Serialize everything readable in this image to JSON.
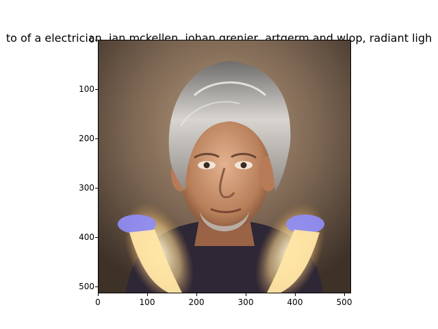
{
  "figure": {
    "title": "to of a electrician, ian mckellen, johan grenier, artgerm and wlop, radiant ligh",
    "y_ticks": [
      "0",
      "100",
      "200",
      "300",
      "400",
      "500"
    ],
    "x_ticks": [
      "0",
      "100",
      "200",
      "300",
      "400",
      "500"
    ],
    "image_extent": [
      0,
      512
    ]
  },
  "colors": {
    "background_top": "#5a4a3c",
    "background_mid": "#a38a6e",
    "skin": "#d8a27e",
    "hair": "#c9c6c2",
    "glow": "#fff2c8",
    "lamp": "#8f8cf2",
    "shirt": "#2f2a3d"
  }
}
